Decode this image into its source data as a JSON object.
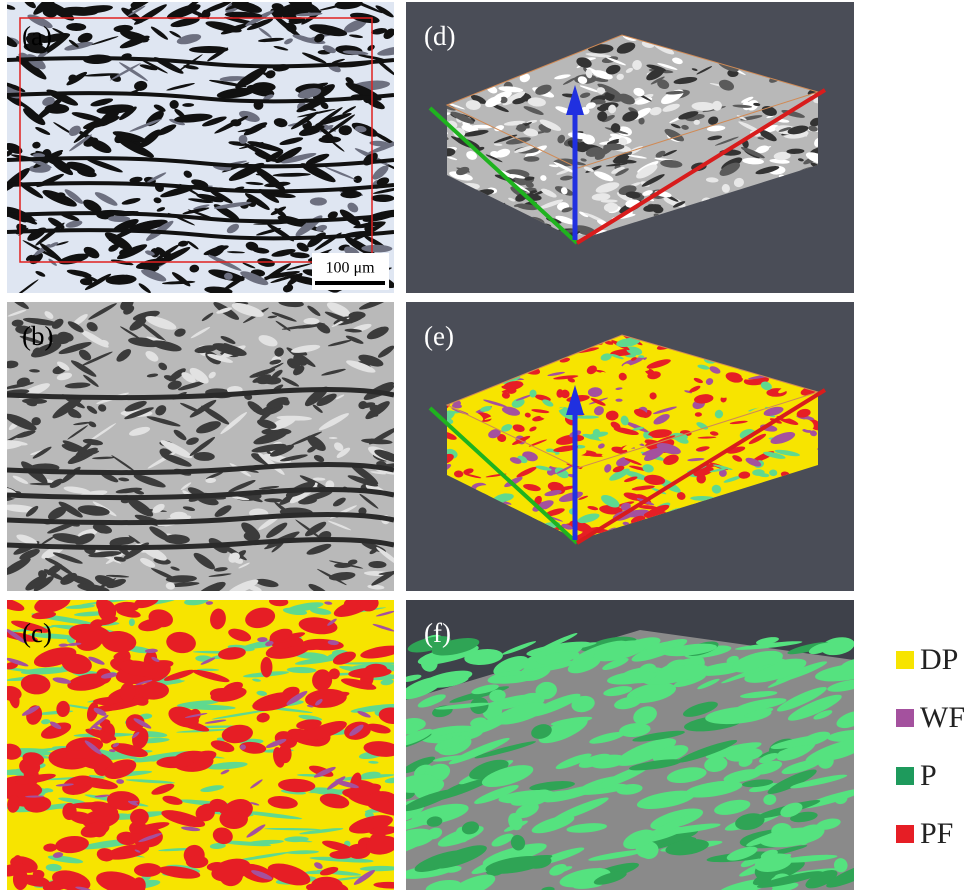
{
  "panels": [
    {
      "label": "(a)"
    },
    {
      "label": "(b)"
    },
    {
      "label": "(c)"
    },
    {
      "label": "(d)"
    },
    {
      "label": "(e)"
    },
    {
      "label": "(f)"
    }
  ],
  "scale_bar": "100 μm",
  "legend": [
    {
      "label": "DP",
      "color": "#f7e400"
    },
    {
      "label": "WF",
      "color": "#a4519e"
    },
    {
      "label": "P",
      "color": "#1e9a5c"
    },
    {
      "label": "PF",
      "color": "#e61e25"
    }
  ]
}
